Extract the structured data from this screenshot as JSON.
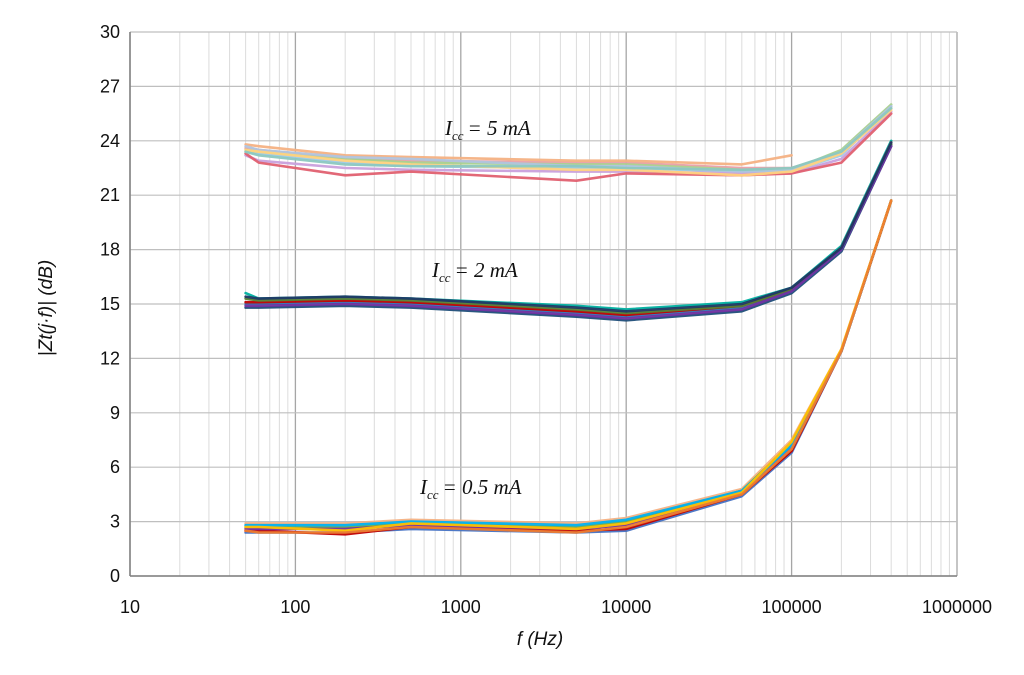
{
  "chart_data": {
    "type": "line",
    "x_scale": "log",
    "xlim": [
      10,
      1000000
    ],
    "ylim": [
      0,
      30
    ],
    "x_ticks": [
      10,
      100,
      1000,
      10000,
      100000,
      1000000
    ],
    "x_tick_labels": [
      "10",
      "100",
      "1000",
      "10000",
      "100000",
      "1000000"
    ],
    "y_ticks": [
      0,
      3,
      6,
      9,
      12,
      15,
      18,
      21,
      24,
      27,
      30
    ],
    "y_tick_labels": [
      "0",
      "3",
      "6",
      "9",
      "12",
      "15",
      "18",
      "21",
      "24",
      "27",
      "30"
    ],
    "xlabel": "f (Hz)",
    "ylabel": "|Zt(j·f)| (dB)",
    "grid": true,
    "x": [
      50,
      60,
      200,
      500,
      5000,
      10000,
      50000,
      100000,
      200000,
      400000
    ],
    "annotations": [
      {
        "symbol": "I",
        "subscript": "cc",
        "text": "= 5  mA"
      },
      {
        "symbol": "I",
        "subscript": "cc",
        "text": "= 2  mA"
      },
      {
        "symbol": "I",
        "subscript": "cc",
        "text": "= 0.5  mA"
      }
    ],
    "series": [
      {
        "group": "5 mA",
        "color": "#e8a0a8",
        "values": [
          23.6,
          23.5,
          23.0,
          22.9,
          22.8,
          22.8,
          22.5,
          22.5,
          23.3,
          25.8
        ]
      },
      {
        "group": "5 mA",
        "color": "#9ecae9",
        "values": [
          23.4,
          23.3,
          22.8,
          22.6,
          22.5,
          22.5,
          22.3,
          22.3,
          23.2,
          25.9
        ]
      },
      {
        "group": "5 mA",
        "color": "#f4b183",
        "values": [
          23.8,
          23.7,
          23.2,
          23.1,
          22.9,
          22.9,
          22.7,
          23.2,
          null,
          null
        ]
      },
      {
        "group": "5 mA",
        "color": "#a9d18e",
        "values": [
          23.5,
          23.4,
          23.0,
          22.8,
          22.7,
          22.7,
          22.4,
          22.4,
          23.5,
          26.0
        ]
      },
      {
        "group": "5 mA",
        "color": "#c9a0dc",
        "values": [
          23.2,
          22.9,
          22.5,
          22.4,
          22.3,
          22.3,
          22.2,
          22.2,
          23.0,
          25.6
        ]
      },
      {
        "group": "5 mA",
        "color": "#e06070",
        "values": [
          23.3,
          22.8,
          22.1,
          22.3,
          21.8,
          22.2,
          22.1,
          22.2,
          22.8,
          25.5
        ]
      },
      {
        "group": "5 mA",
        "color": "#b0c4de",
        "values": [
          23.7,
          23.5,
          23.1,
          23.0,
          22.6,
          22.6,
          22.3,
          22.4,
          23.4,
          25.9
        ]
      },
      {
        "group": "5 mA",
        "color": "#ffd27f",
        "values": [
          23.5,
          23.4,
          22.9,
          22.7,
          22.4,
          22.4,
          22.1,
          22.3,
          23.3,
          25.7
        ]
      },
      {
        "group": "5 mA",
        "color": "#8cc8c0",
        "values": [
          23.4,
          23.2,
          22.7,
          22.6,
          22.6,
          22.5,
          22.4,
          22.5,
          23.4,
          25.8
        ]
      },
      {
        "group": "2 mA",
        "color": "#1f4e79",
        "values": [
          14.8,
          14.8,
          14.9,
          14.8,
          14.3,
          14.1,
          14.6,
          15.6,
          17.9,
          23.7
        ]
      },
      {
        "group": "2 mA",
        "color": "#2e75b6",
        "values": [
          15.0,
          15.0,
          15.1,
          15.0,
          14.5,
          14.3,
          14.8,
          15.7,
          18.0,
          23.8
        ]
      },
      {
        "group": "2 mA",
        "color": "#00b0a0",
        "values": [
          15.6,
          15.3,
          15.4,
          15.3,
          14.9,
          14.7,
          15.1,
          15.9,
          18.2,
          24.0
        ]
      },
      {
        "group": "2 mA",
        "color": "#c00000",
        "values": [
          15.1,
          15.1,
          15.2,
          15.1,
          14.6,
          14.4,
          14.9,
          15.8,
          18.1,
          23.9
        ]
      },
      {
        "group": "2 mA",
        "color": "#548235",
        "values": [
          15.3,
          15.2,
          15.3,
          15.2,
          14.7,
          14.5,
          14.9,
          15.8,
          18.1,
          23.8
        ]
      },
      {
        "group": "2 mA",
        "color": "#7030a0",
        "values": [
          14.9,
          14.9,
          15.0,
          14.9,
          14.4,
          14.2,
          14.7,
          15.7,
          18.0,
          23.7
        ]
      },
      {
        "group": "2 mA",
        "color": "#203864",
        "values": [
          15.4,
          15.3,
          15.4,
          15.3,
          14.8,
          14.6,
          15.0,
          15.9,
          18.1,
          23.9
        ]
      },
      {
        "group": "0.5 mA",
        "color": "#f4b183",
        "values": [
          2.9,
          2.9,
          2.9,
          3.1,
          2.9,
          3.2,
          4.8,
          7.5,
          12.5,
          20.7
        ]
      },
      {
        "group": "0.5 mA",
        "color": "#70ad47",
        "values": [
          2.7,
          2.7,
          2.7,
          2.9,
          2.7,
          3.0,
          4.7,
          7.3,
          12.4,
          20.7
        ]
      },
      {
        "group": "0.5 mA",
        "color": "#4472c4",
        "values": [
          2.4,
          2.4,
          2.4,
          2.6,
          2.4,
          2.5,
          4.4,
          6.8,
          12.4,
          20.7
        ]
      },
      {
        "group": "0.5 mA",
        "color": "#c00000",
        "values": [
          2.5,
          2.5,
          2.3,
          2.7,
          2.5,
          2.6,
          4.5,
          6.9,
          12.4,
          20.7
        ]
      },
      {
        "group": "0.5 mA",
        "color": "#7030a0",
        "values": [
          2.6,
          2.6,
          2.6,
          2.8,
          2.6,
          2.8,
          4.6,
          7.1,
          12.4,
          20.7
        ]
      },
      {
        "group": "0.5 mA",
        "color": "#00b0f0",
        "values": [
          2.8,
          2.8,
          2.8,
          3.0,
          2.8,
          3.1,
          4.7,
          7.2,
          12.4,
          20.7
        ]
      },
      {
        "group": "0.5 mA",
        "color": "#ffc000",
        "values": [
          2.7,
          2.7,
          2.5,
          2.9,
          2.6,
          2.9,
          4.6,
          7.4,
          12.5,
          20.7
        ]
      },
      {
        "group": "0.5 mA",
        "color": "#ed7d31",
        "values": [
          2.5,
          2.4,
          2.4,
          2.7,
          2.4,
          2.7,
          4.5,
          7.0,
          12.4,
          20.7
        ]
      }
    ]
  }
}
